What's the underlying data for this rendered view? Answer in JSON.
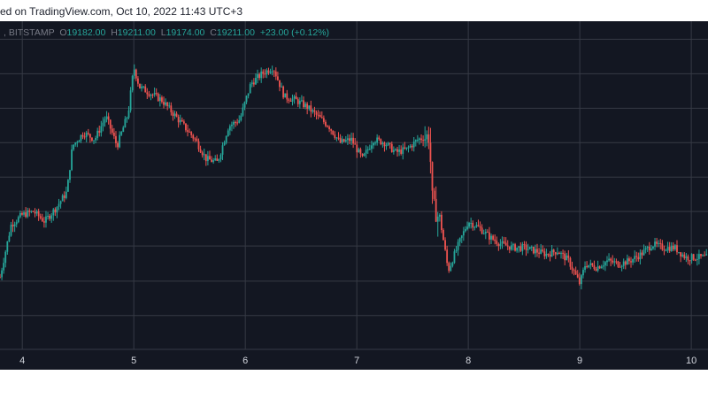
{
  "header": {
    "publisher_text": "ed on TradingView.com, Oct 10, 2022 11:43 UTC+3"
  },
  "legend": {
    "symbol": "BITSTAMP",
    "open_label": "O",
    "open": "19182.00",
    "high_label": "H",
    "high": "19211.00",
    "low_label": "L",
    "low": "19174.00",
    "close_label": "C",
    "close": "19211.00",
    "change": "+23.00 (+0.12%)"
  },
  "colors": {
    "background": "#131722",
    "grid": "#363a45",
    "up": "#26a69a",
    "down": "#ef5350",
    "axis_text": "#d1d4dc",
    "legend_text": "#787b86"
  },
  "chart_data": {
    "type": "candlestick",
    "x_ticks": [
      "4",
      "5",
      "6",
      "7",
      "8",
      "9",
      "10"
    ],
    "x": [
      3.8,
      3.9,
      4.0,
      4.1,
      4.2,
      4.3,
      4.4,
      4.45,
      4.55,
      4.65,
      4.75,
      4.85,
      4.95,
      5.0,
      5.05,
      5.15,
      5.25,
      5.35,
      5.45,
      5.55,
      5.65,
      5.75,
      5.85,
      5.95,
      6.05,
      6.15,
      6.25,
      6.35,
      6.45,
      6.55,
      6.65,
      6.75,
      6.85,
      6.95,
      7.05,
      7.15,
      7.25,
      7.35,
      7.45,
      7.55,
      7.65,
      7.68,
      7.75,
      7.82,
      7.9,
      8.0,
      8.1,
      8.2,
      8.3,
      8.4,
      8.5,
      8.6,
      8.7,
      8.8,
      8.9,
      9.0,
      9.05,
      9.15,
      9.25,
      9.35,
      9.45,
      9.55,
      9.65,
      9.75,
      9.85,
      9.95,
      10.05
    ],
    "values": [
      0.22,
      0.38,
      0.41,
      0.42,
      0.39,
      0.43,
      0.48,
      0.62,
      0.66,
      0.64,
      0.71,
      0.62,
      0.72,
      0.86,
      0.8,
      0.78,
      0.76,
      0.72,
      0.68,
      0.64,
      0.58,
      0.57,
      0.68,
      0.7,
      0.81,
      0.84,
      0.86,
      0.77,
      0.76,
      0.74,
      0.71,
      0.68,
      0.63,
      0.64,
      0.58,
      0.64,
      0.63,
      0.6,
      0.61,
      0.64,
      0.65,
      0.44,
      0.39,
      0.24,
      0.31,
      0.39,
      0.37,
      0.34,
      0.32,
      0.31,
      0.31,
      0.3,
      0.29,
      0.3,
      0.27,
      0.2,
      0.26,
      0.25,
      0.27,
      0.26,
      0.27,
      0.29,
      0.32,
      0.31,
      0.31,
      0.28,
      0.28
    ]
  }
}
